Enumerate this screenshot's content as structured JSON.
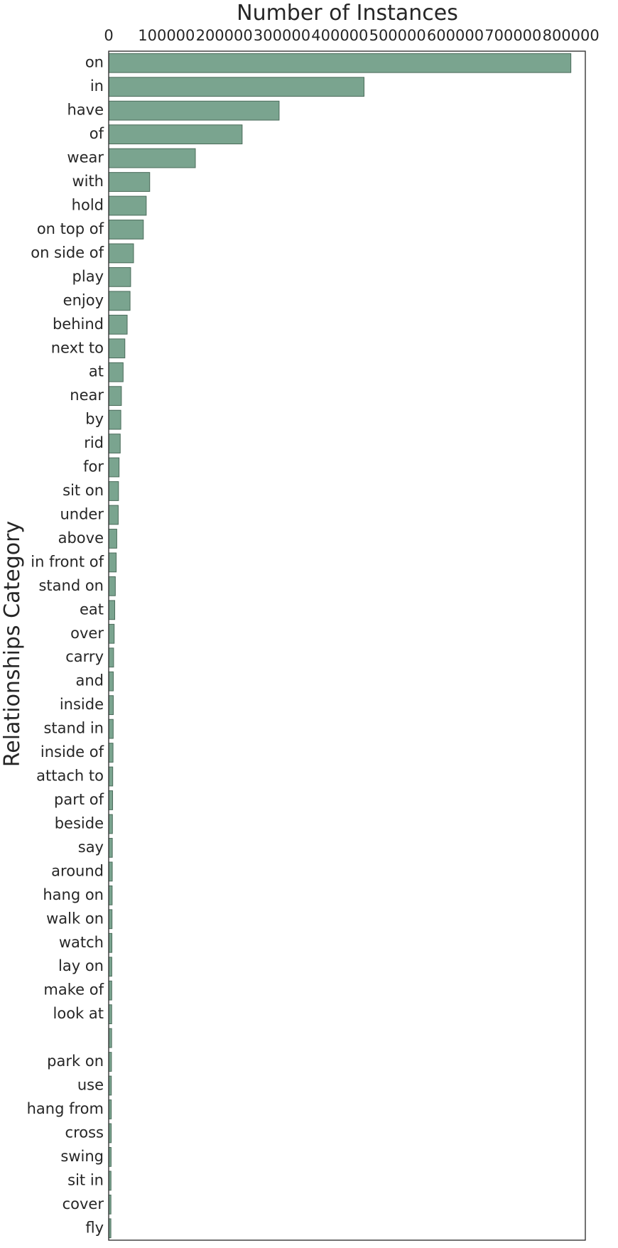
{
  "chart_data": {
    "type": "bar",
    "orientation": "horizontal",
    "title": "",
    "xlabel": "Number of Instances",
    "ylabel": "Relationships Category",
    "xlim": [
      0,
      825000
    ],
    "x_ticks": [
      0,
      100000,
      200000,
      300000,
      400000,
      500000,
      600000,
      700000,
      800000
    ],
    "x_tick_labels": [
      "0",
      "100000",
      "200000",
      "300000",
      "400000",
      "500000",
      "600000",
      "700000",
      "800000"
    ],
    "x_axis_position": "top",
    "grid": false,
    "legend": "none",
    "bar_color": "#7aa48f",
    "bar_edge_color": "#4a6b5a",
    "categories": [
      "on",
      "in",
      "have",
      "of",
      "wear",
      "with",
      "hold",
      "on top of",
      "on side of",
      "play",
      "enjoy",
      "behind",
      "next to",
      "at",
      "near",
      "by",
      "rid",
      "for",
      "sit on",
      "under",
      "above",
      "in front of",
      "stand on",
      "eat",
      "over",
      "carry",
      "and",
      "inside",
      "stand in",
      "inside of",
      "attach to",
      "part of",
      "beside",
      "say",
      "around",
      "hang on",
      "walk on",
      "watch",
      "lay on",
      "make of",
      "look at",
      "",
      "park on",
      "use",
      "hang from",
      "cross",
      "swing",
      "sit in",
      "cover",
      "fly"
    ],
    "values": [
      800000,
      442000,
      295000,
      231000,
      150000,
      71000,
      65000,
      60000,
      43000,
      38000,
      37000,
      32000,
      28000,
      25000,
      22000,
      21000,
      20000,
      18000,
      17000,
      16500,
      14000,
      13000,
      11500,
      10500,
      9500,
      8500,
      8000,
      8000,
      7800,
      7500,
      7000,
      6800,
      6500,
      6300,
      6200,
      6000,
      5800,
      5600,
      5400,
      5300,
      5200,
      5100,
      4800,
      4600,
      4500,
      4400,
      4200,
      4000,
      3900,
      3800
    ]
  }
}
